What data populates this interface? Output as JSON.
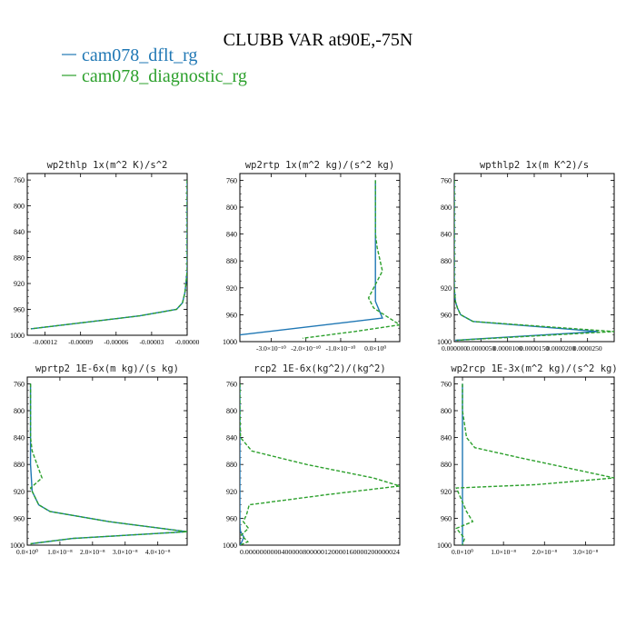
{
  "figure": {
    "title": "CLUBB VAR at90E,-75N",
    "legend": [
      {
        "label": "cam078_dflt_rg",
        "color": "#1f77b4"
      },
      {
        "label": "cam078_diagnostic_rg",
        "color": "#2ca02c"
      }
    ]
  },
  "chart_data": [
    {
      "type": "line",
      "title": "wp2thlp   1x(m^2 K)/s^2",
      "ylim": [
        1000,
        750
      ],
      "yticks": [
        760,
        800,
        840,
        880,
        920,
        960,
        1000
      ],
      "xlim": [
        -0.000135,
        0.0
      ],
      "xticks": [
        {
          "v": -0.00012,
          "label": "-0.00012"
        },
        {
          "v": -9e-05,
          "label": "-0.00009"
        },
        {
          "v": -6e-05,
          "label": "-0.00006"
        },
        {
          "v": -3e-05,
          "label": "-0.00003"
        },
        {
          "v": 0.0,
          "label": "-0.00000"
        }
      ],
      "series": [
        {
          "name": "cam078_dflt_rg",
          "dash": false,
          "x": [
            0,
            0,
            0,
            0,
            0,
            -1e-06,
            -2e-06,
            -4e-06,
            -9e-06,
            -4e-05,
            -0.000132
          ],
          "y": [
            760,
            800,
            840,
            880,
            900,
            920,
            935,
            950,
            960,
            970,
            990
          ]
        },
        {
          "name": "cam078_diagnostic_rg",
          "dash": true,
          "x": [
            0,
            0,
            0,
            0,
            0,
            -1e-06,
            -2e-06,
            -4e-06,
            -9e-06,
            -4e-05,
            -0.000132
          ],
          "y": [
            760,
            800,
            840,
            880,
            900,
            920,
            935,
            950,
            960,
            970,
            990
          ]
        }
      ]
    },
    {
      "type": "line",
      "title": "wp2rtp   1x(m^2 kg)/(s^2 kg)",
      "ylim": [
        1000,
        750
      ],
      "yticks": [
        760,
        800,
        840,
        880,
        920,
        960,
        1000
      ],
      "xlim": [
        -3.9e-10,
        7e-11
      ],
      "xticks": [
        {
          "v": -3e-10,
          "label": "-3.0×10⁻¹⁰"
        },
        {
          "v": -2e-10,
          "label": "-2.0×10⁻¹⁰"
        },
        {
          "v": -1e-10,
          "label": "-1.0×10⁻¹⁰"
        },
        {
          "v": 0.0,
          "label": "0.0×10⁰"
        }
      ],
      "series": [
        {
          "name": "cam078_dflt_rg",
          "dash": false,
          "x": [
            0,
            0,
            0,
            0,
            0,
            0,
            0,
            2e-11,
            -3.9e-10
          ],
          "y": [
            760,
            800,
            840,
            880,
            900,
            920,
            940,
            965,
            990
          ]
        },
        {
          "name": "cam078_diagnostic_rg",
          "dash": true,
          "x": [
            0,
            0,
            0,
            5e-12,
            2e-11,
            -5e-12,
            -2e-11,
            -5e-12,
            2.5e-11,
            7e-11,
            -6e-11,
            -2.1e-10
          ],
          "y": [
            760,
            800,
            840,
            860,
            895,
            920,
            935,
            950,
            960,
            975,
            985,
            995
          ]
        }
      ]
    },
    {
      "type": "line",
      "title": "wpthlp2   1x(m K^2)/s",
      "ylim": [
        1000,
        750
      ],
      "yticks": [
        760,
        800,
        840,
        880,
        920,
        960,
        1000
      ],
      "xlim": [
        0.0,
        3e-05
      ],
      "xticks": [
        {
          "v": 0.0,
          "label": "0.000000"
        },
        {
          "v": 5e-06,
          "label": "0.0000050"
        },
        {
          "v": 1e-05,
          "label": "0.0000100"
        },
        {
          "v": 1.5e-05,
          "label": "0.0000150"
        },
        {
          "v": 2e-05,
          "label": "0.0000200"
        },
        {
          "v": 2.5e-05,
          "label": "0.0000250"
        }
      ],
      "series": [
        {
          "name": "cam078_dflt_rg",
          "dash": false,
          "x": [
            0,
            0,
            0,
            0,
            0,
            2e-07,
            6e-07,
            1.2e-06,
            3.5e-06,
            2.7e-05,
            2e-07
          ],
          "y": [
            760,
            800,
            840,
            880,
            920,
            940,
            950,
            960,
            970,
            985,
            998
          ]
        },
        {
          "name": "cam078_diagnostic_rg",
          "dash": true,
          "x": [
            0,
            0,
            0,
            0,
            0,
            2e-07,
            6e-07,
            1.2e-06,
            3.5e-06,
            3e-05,
            5e-07
          ],
          "y": [
            760,
            800,
            840,
            880,
            920,
            940,
            950,
            960,
            970,
            985,
            998
          ]
        }
      ]
    },
    {
      "type": "line",
      "title": "wprtp2   1E-6x(m kg)/(s kg)",
      "ylim": [
        1000,
        750
      ],
      "yticks": [
        760,
        800,
        840,
        880,
        920,
        960,
        1000
      ],
      "xlim": [
        0.0,
        4.9e-08
      ],
      "xticks": [
        {
          "v": 0.0,
          "label": "0.0×10⁰"
        },
        {
          "v": 1e-08,
          "label": "1.0×10⁻⁸"
        },
        {
          "v": 2e-08,
          "label": "2.0×10⁻⁸"
        },
        {
          "v": 3e-08,
          "label": "3.0×10⁻⁸"
        },
        {
          "v": 4e-08,
          "label": "4.0×10⁻⁸"
        }
      ],
      "series": [
        {
          "name": "cam078_dflt_rg",
          "dash": false,
          "x": [
            1e-09,
            1e-09,
            1e-09,
            1e-09,
            1e-09,
            1.5e-09,
            3.5e-09,
            7e-09,
            2.5e-08,
            4.9e-08,
            1.4e-08,
            1e-09
          ],
          "y": [
            760,
            800,
            840,
            860,
            880,
            920,
            940,
            950,
            965,
            980,
            990,
            998
          ]
        },
        {
          "name": "cam078_diagnostic_rg",
          "dash": true,
          "x": [
            1e-09,
            1e-09,
            1e-09,
            1.5e-09,
            3e-09,
            4.5e-09,
            1e-09,
            3.5e-09,
            7e-09,
            2.5e-08,
            4.9e-08,
            1.4e-08,
            1e-09
          ],
          "y": [
            760,
            800,
            840,
            860,
            880,
            900,
            915,
            940,
            950,
            965,
            980,
            990,
            998
          ]
        }
      ]
    },
    {
      "type": "line",
      "title": "rcp2   1E-6x(kg^2)/(kg^2)",
      "ylim": [
        1000,
        750
      ],
      "yticks": [
        760,
        800,
        840,
        880,
        920,
        960,
        1000
      ],
      "xlim": [
        0.0,
        2.4e-07
      ],
      "xticks": [
        {
          "v": 0.0,
          "label": "0.000000"
        },
        {
          "v": 2.4e-07,
          "label": "0.00000024"
        }
      ],
      "xlabel_overprint": "0.0000000000400000800000120000160000200000024",
      "series": [
        {
          "name": "cam078_dflt_rg",
          "dash": false,
          "x": [
            0,
            0,
            0,
            0,
            0,
            0,
            0,
            1e-09,
            6e-09,
            3e-09,
            0
          ],
          "y": [
            760,
            800,
            840,
            880,
            920,
            960,
            970,
            980,
            988,
            995,
            1000
          ]
        },
        {
          "name": "cam078_diagnostic_rg",
          "dash": true,
          "x": [
            0,
            0,
            1e-09,
            1.8e-08,
            1e-07,
            2e-07,
            2.4e-07,
            1.3e-07,
            1.4e-08,
            1e-08,
            5e-09,
            1.3e-08,
            2e-09,
            1.2e-08,
            0
          ],
          "y": [
            760,
            800,
            840,
            860,
            880,
            900,
            912,
            925,
            940,
            955,
            965,
            975,
            985,
            995,
            1000
          ]
        }
      ]
    },
    {
      "type": "line",
      "title": "wp2rcp   1E-3x(m^2 kg)/(s^2 kg)",
      "ylim": [
        1000,
        750
      ],
      "yticks": [
        760,
        800,
        840,
        880,
        920,
        960,
        1000
      ],
      "xlim": [
        -2e-09,
        3.7e-08
      ],
      "xticks": [
        {
          "v": 0.0,
          "label": "0.0×10⁰"
        },
        {
          "v": 1e-08,
          "label": "1.0×10⁻⁸"
        },
        {
          "v": 2e-08,
          "label": "2.0×10⁻⁸"
        },
        {
          "v": 3e-08,
          "label": "3.0×10⁻⁸"
        }
      ],
      "series": [
        {
          "name": "cam078_dflt_rg",
          "dash": false,
          "x": [
            0,
            0,
            0,
            0,
            0,
            0,
            0,
            0,
            0
          ],
          "y": [
            760,
            800,
            840,
            880,
            920,
            960,
            980,
            990,
            1000
          ]
        },
        {
          "name": "cam078_diagnostic_rg",
          "dash": true,
          "x": [
            0,
            0,
            1e-09,
            3e-09,
            1.4e-08,
            3.7e-08,
            1.8e-08,
            -1.5e-09,
            1e-09,
            2.5e-09,
            -1.5e-09,
            5e-10,
            0
          ],
          "y": [
            760,
            800,
            840,
            855,
            870,
            900,
            910,
            915,
            950,
            965,
            975,
            990,
            1000
          ]
        }
      ]
    }
  ]
}
